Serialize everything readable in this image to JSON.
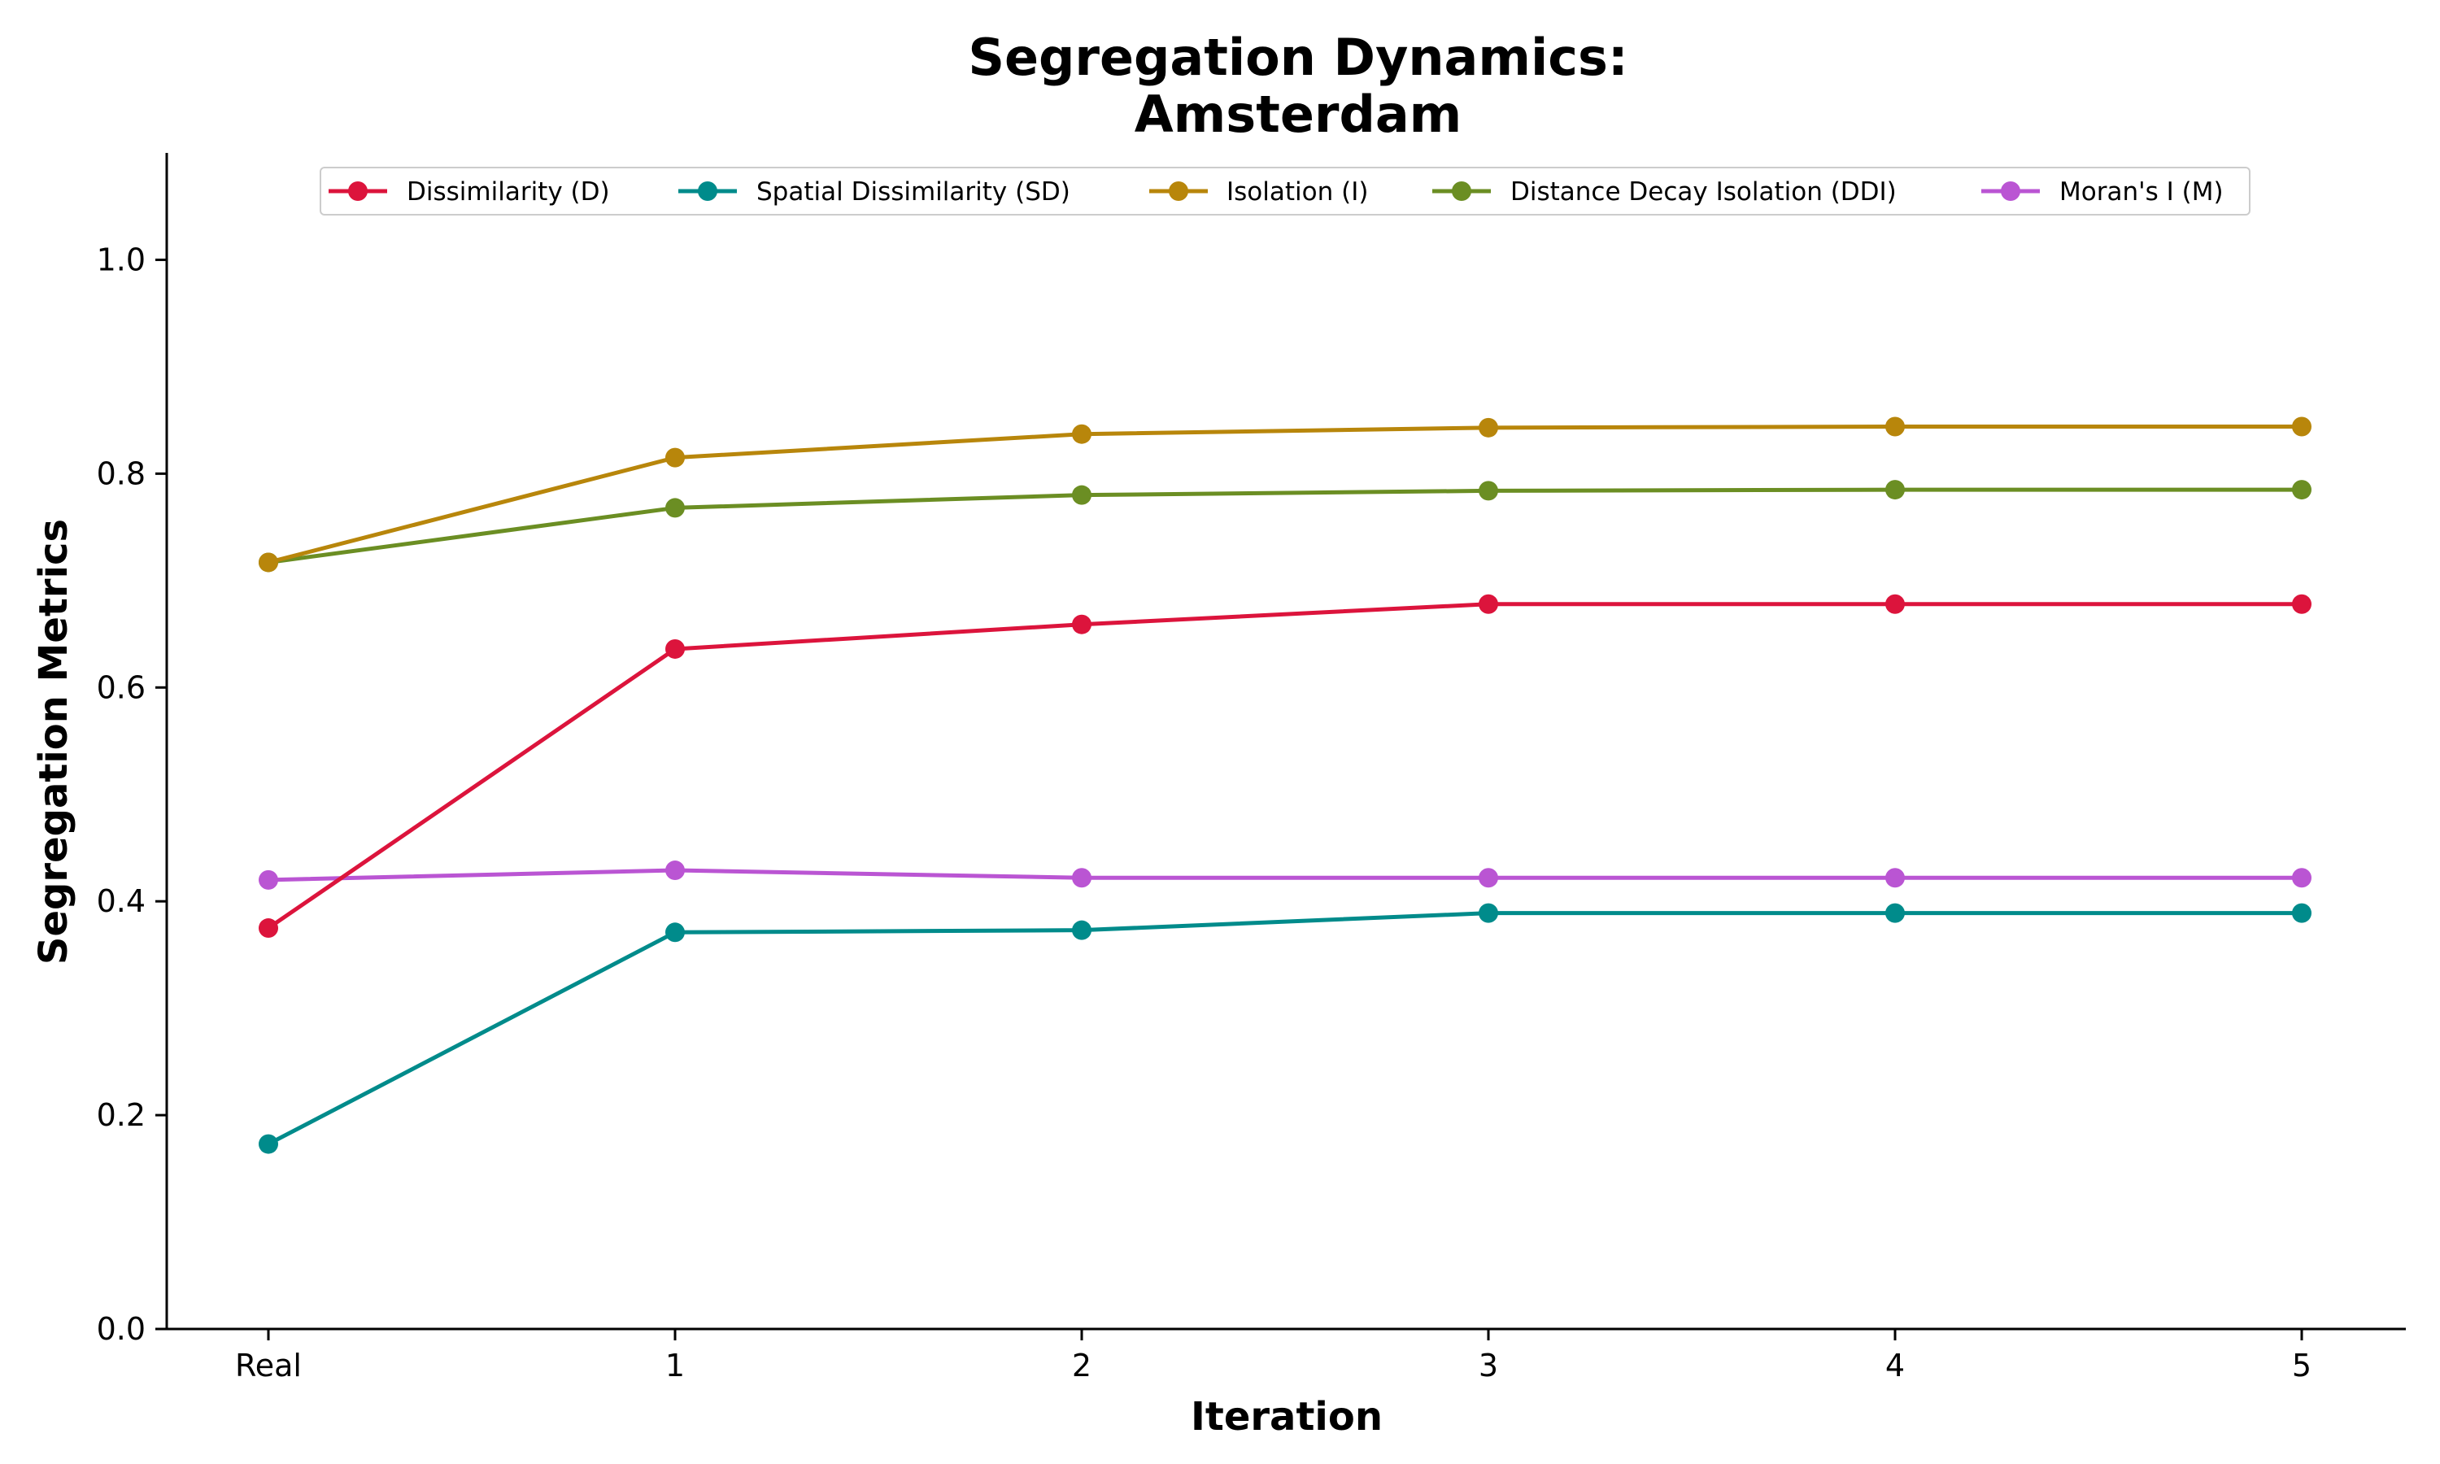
{
  "chart_data": {
    "type": "line",
    "title_line1": "Segregation Dynamics:",
    "title_line2": "Amsterdam",
    "xlabel": "Iteration",
    "ylabel": "Segregation Metrics",
    "categories": [
      "Real",
      "1",
      "2",
      "3",
      "4",
      "5"
    ],
    "ylim": [
      0,
      1.1
    ],
    "yticks": [
      "0.0",
      "0.2",
      "0.4",
      "0.6",
      "0.8",
      "1.0"
    ],
    "ytick_values": [
      0.0,
      0.2,
      0.4,
      0.6,
      0.8,
      1.0
    ],
    "grid": false,
    "legend_position": "top-center",
    "series": [
      {
        "name": "Dissimilarity (D)",
        "color": "#dc143c",
        "values": [
          0.375,
          0.636,
          0.659,
          0.678,
          0.678,
          0.678
        ]
      },
      {
        "name": "Spatial Dissimilarity (SD)",
        "color": "#008b8b",
        "values": [
          0.173,
          0.371,
          0.373,
          0.389,
          0.389,
          0.389
        ]
      },
      {
        "name": "Isolation (I)",
        "color": "#b8860b",
        "values": [
          0.717,
          0.815,
          0.837,
          0.843,
          0.844,
          0.844
        ]
      },
      {
        "name": "Distance Decay Isolation (DDI)",
        "color": "#6b8e23",
        "values": [
          0.717,
          0.768,
          0.78,
          0.784,
          0.785,
          0.785
        ]
      },
      {
        "name": "Moran's I (M)",
        "color": "#ba55d3",
        "values": [
          0.42,
          0.429,
          0.422,
          0.422,
          0.422,
          0.422
        ]
      }
    ]
  }
}
